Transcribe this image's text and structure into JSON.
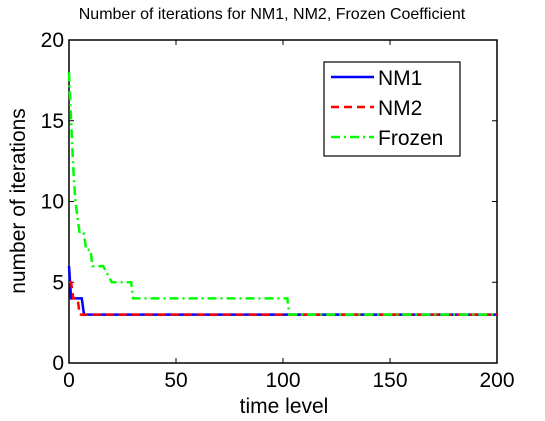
{
  "chart_data": {
    "type": "line",
    "title": "Number of iterations for NM1, NM2, Frozen Coefficient",
    "xlabel": "time level",
    "ylabel": "number of iterations",
    "xlim": [
      0,
      200
    ],
    "ylim": [
      0,
      20
    ],
    "xticks": [
      0,
      50,
      100,
      150,
      200
    ],
    "yticks": [
      0,
      5,
      10,
      15,
      20
    ],
    "grid": false,
    "legend_position": "top-right",
    "series": [
      {
        "name": "NM1",
        "color": "#0000ff",
        "style": "solid",
        "x": [
          0,
          1,
          2,
          6,
          7,
          200
        ],
        "y": [
          6,
          4,
          4,
          4,
          3,
          3
        ]
      },
      {
        "name": "NM2",
        "color": "#ff0000",
        "style": "dashed",
        "x": [
          0,
          1,
          2,
          4,
          5,
          200
        ],
        "y": [
          5,
          5,
          4,
          4,
          3,
          3
        ]
      },
      {
        "name": "Frozen",
        "color": "#00ff00",
        "style": "dashdot",
        "x": [
          0,
          1,
          2,
          3,
          4,
          5,
          6,
          7,
          8,
          9,
          10,
          11,
          15,
          16,
          20,
          28,
          29,
          30,
          102,
          103,
          200
        ],
        "y": [
          18,
          15,
          12,
          10,
          9,
          8,
          8,
          8,
          7,
          7,
          7,
          6,
          6,
          6,
          5,
          5,
          5,
          4,
          4,
          3,
          3
        ]
      }
    ]
  }
}
